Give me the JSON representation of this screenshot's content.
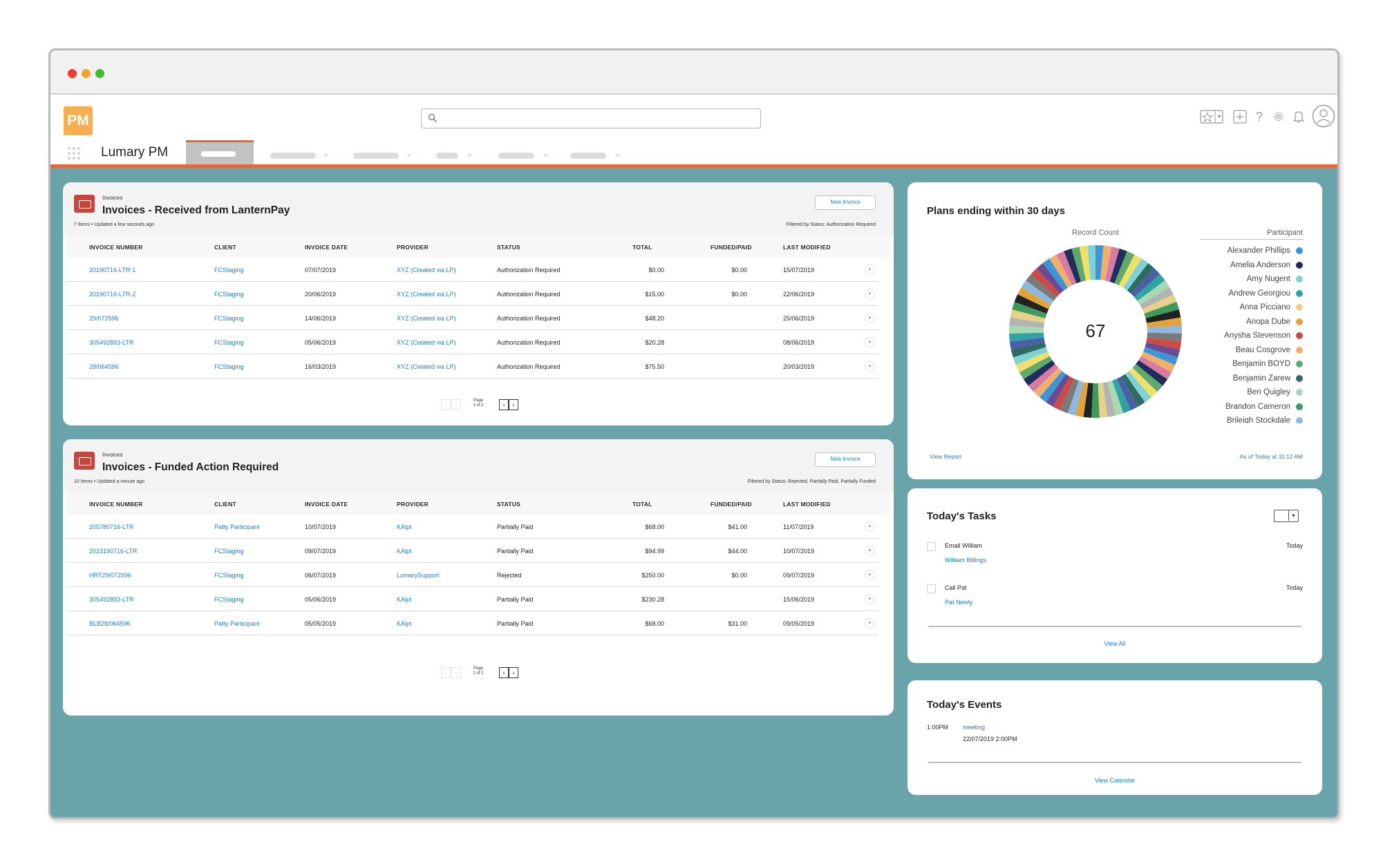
{
  "app": {
    "logo": "PM",
    "name": "Lumary PM"
  },
  "search": {
    "placeholder": ""
  },
  "invoices_received": {
    "object_label": "Invoices",
    "title": "Invoices - Received from LanternPay",
    "subtitle": "7 Items • Updated a few seconds ago",
    "filter": "Filtered by Status: Authorization Required",
    "new_button": "New Invoice",
    "columns": [
      "INVOICE NUMBER",
      "CLIENT",
      "INVOICE DATE",
      "PROVIDER",
      "STATUS",
      "TOTAL",
      "FUNDED/PAID",
      "LAST MODIFIED"
    ],
    "rows": [
      [
        "20190716-LTR-1",
        "FCStaging",
        "07/07/2019",
        "XYZ (Created via LP)",
        "Authorization Required",
        "$0.00",
        "$0.00",
        "15/07/2019"
      ],
      [
        "20190716-LTR-2",
        "FCStaging",
        "20/06/2019",
        "XYZ (Created via LP)",
        "Authorization Required",
        "$15.00",
        "$0.00",
        "22/06/2019"
      ],
      [
        "29/072596",
        "FCStaging",
        "14/06/2019",
        "XYZ (Created via LP)",
        "Authorization Required",
        "$48.20",
        "",
        "25/06/2019"
      ],
      [
        "305492893-LTR",
        "FCStaging",
        "05/06/2019",
        "XYZ (Created via LP)",
        "Authorization Required",
        "$20.28",
        "",
        "08/06/2019"
      ],
      [
        "28/064596",
        "FCStaging",
        "16/03/2019",
        "XYZ (Created via LP)",
        "Authorization Required",
        "$75.50",
        "",
        "20/03/2019"
      ]
    ],
    "pager": {
      "line1": "Page",
      "line2": "1 of 2"
    }
  },
  "invoices_funded": {
    "object_label": "Invoices",
    "title": "Invoices - Funded Action Required",
    "subtitle": "10 Items • Updated a minute ago",
    "filter": "Filtered by Status: Rejected, Partially Paid, Partially Funded",
    "new_button": "New Invoice",
    "columns": [
      "INVOICE NUMBER",
      "CLIENT",
      "INVOICE DATE",
      "PROVIDER",
      "STATUS",
      "TOTAL",
      "FUNDED/PAID",
      "LAST MODIFIED"
    ],
    "rows": [
      [
        "205780716-LTR",
        "Patty Participant",
        "10/07/2019",
        "KAlpt",
        "Partially Paid",
        "$68.00",
        "$41.00",
        "11/07/2019"
      ],
      [
        "2023190716-LTR",
        "FCStaging",
        "09/07/2019",
        "KAlpt",
        "Partially Paid",
        "$94.99",
        "$44.00",
        "10/07/2019"
      ],
      [
        "HRT29/072596",
        "FCStaging",
        "06/07/2019",
        "LumarySupport",
        "Rejected",
        "$250.00",
        "$0.00",
        "09/07/2019"
      ],
      [
        "305492893-LTR",
        "FCStaging",
        "05/06/2019",
        "KAlpt",
        "Partially Paid",
        "$230.28",
        "",
        "15/06/2019"
      ],
      [
        "BLB28/064596",
        "Patty Participant",
        "05/05/2019",
        "KAlpt",
        "Partially Paid",
        "$68.00",
        "$31.00",
        "09/05/2019"
      ]
    ],
    "pager": {
      "line1": "Page",
      "line2": "1 of 2"
    }
  },
  "plans": {
    "title": "Plans ending within 30 days",
    "view_report": "View Report",
    "as_of": "As of Today at 11:12 AM"
  },
  "chart_data": {
    "type": "pie",
    "style": "donut",
    "center_value": "67",
    "xlabel": "Record Count",
    "legend_title": "Participant",
    "legend_position": "right",
    "legend": [
      {
        "name": "Alexander Phillips",
        "color": "#3b95d6"
      },
      {
        "name": "Amelia Anderson",
        "color": "#1f2e5a"
      },
      {
        "name": "Amy Nugent",
        "color": "#7fd3d4"
      },
      {
        "name": "Andrew Georgiou",
        "color": "#2fa3a3"
      },
      {
        "name": "Anna Picciano",
        "color": "#e8d08a"
      },
      {
        "name": "Anopa Dube",
        "color": "#e3a33a"
      },
      {
        "name": "Anysha Stevenson",
        "color": "#cc4b46"
      },
      {
        "name": "Beau Cosgrove",
        "color": "#f1b06a"
      },
      {
        "name": "Benjamin BOYD",
        "color": "#5faa6b"
      },
      {
        "name": "Benjamin Zarew",
        "color": "#2f6b63"
      },
      {
        "name": "Ben Quigley",
        "color": "#a8d9b0"
      },
      {
        "name": "Brandon Cameron",
        "color": "#3d9a5a"
      },
      {
        "name": "Brileigh Stockdale",
        "color": "#8fb8e0"
      }
    ],
    "segment_count": 67,
    "segment_colors": [
      "#3b95d6",
      "#1f2e5a",
      "#7fd3d4",
      "#2fa3a3",
      "#e8d08a",
      "#e3a33a",
      "#cc4b46",
      "#f1b06a",
      "#5faa6b",
      "#2f6b63",
      "#a8d9b0",
      "#3d9a5a",
      "#8fb8e0",
      "#6a4c93",
      "#d97aa5",
      "#f0e06a",
      "#4a5fa8",
      "#b3b3b3",
      "#222222",
      "#7a7a7a"
    ]
  },
  "tasks": {
    "title": "Today's Tasks",
    "items": [
      {
        "name": "Email William",
        "related": "William Billings",
        "date": "Today"
      },
      {
        "name": "Call Pat",
        "related": "Pat Newly",
        "date": "Today"
      }
    ],
    "view_all": "View All"
  },
  "events": {
    "title": "Today's Events",
    "items": [
      {
        "time": "1:00PM",
        "title": "meeting",
        "datetime": "22/07/2019 2:00PM"
      }
    ],
    "view_calendar": "View Calendar"
  }
}
